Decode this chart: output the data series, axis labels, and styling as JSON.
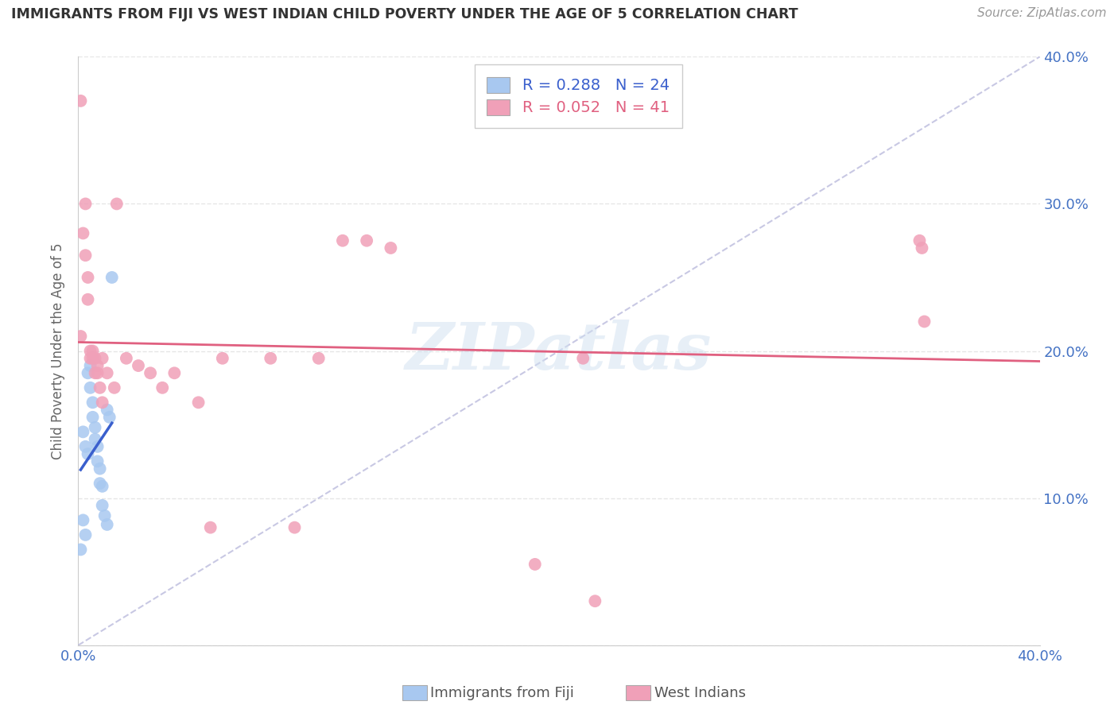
{
  "title": "IMMIGRANTS FROM FIJI VS WEST INDIAN CHILD POVERTY UNDER THE AGE OF 5 CORRELATION CHART",
  "source": "Source: ZipAtlas.com",
  "ylabel": "Child Poverty Under the Age of 5",
  "xlim": [
    0.0,
    0.4
  ],
  "ylim": [
    0.0,
    0.4
  ],
  "xticks": [
    0.0,
    0.05,
    0.1,
    0.15,
    0.2,
    0.25,
    0.3,
    0.35,
    0.4
  ],
  "yticks": [
    0.0,
    0.1,
    0.2,
    0.3,
    0.4
  ],
  "grid_color": "#e0e0e0",
  "background_color": "#ffffff",
  "fiji_color": "#a8c8f0",
  "west_indian_color": "#f0a0b8",
  "fiji_line_color": "#3a5fcd",
  "west_indian_line_color": "#e06080",
  "diagonal_color": "#bbbbdd",
  "legend_fiji_R": "0.288",
  "legend_fiji_N": 24,
  "legend_west_R": "0.052",
  "legend_west_N": 41,
  "fiji_x": [
    0.001,
    0.002,
    0.002,
    0.003,
    0.003,
    0.004,
    0.004,
    0.005,
    0.005,
    0.006,
    0.006,
    0.007,
    0.007,
    0.008,
    0.008,
    0.009,
    0.009,
    0.01,
    0.01,
    0.011,
    0.012,
    0.012,
    0.013,
    0.014
  ],
  "fiji_y": [
    0.065,
    0.085,
    0.145,
    0.075,
    0.135,
    0.13,
    0.185,
    0.19,
    0.175,
    0.165,
    0.155,
    0.148,
    0.14,
    0.135,
    0.125,
    0.12,
    0.11,
    0.108,
    0.095,
    0.088,
    0.082,
    0.16,
    0.155,
    0.25
  ],
  "west_x": [
    0.001,
    0.001,
    0.002,
    0.003,
    0.003,
    0.004,
    0.004,
    0.005,
    0.005,
    0.006,
    0.006,
    0.007,
    0.007,
    0.008,
    0.008,
    0.009,
    0.01,
    0.01,
    0.012,
    0.015,
    0.016,
    0.02,
    0.025,
    0.03,
    0.035,
    0.04,
    0.05,
    0.055,
    0.06,
    0.08,
    0.09,
    0.1,
    0.11,
    0.12,
    0.13,
    0.19,
    0.21,
    0.215,
    0.35,
    0.351,
    0.352
  ],
  "west_y": [
    0.37,
    0.21,
    0.28,
    0.265,
    0.3,
    0.25,
    0.235,
    0.195,
    0.2,
    0.2,
    0.195,
    0.185,
    0.195,
    0.19,
    0.185,
    0.175,
    0.165,
    0.195,
    0.185,
    0.175,
    0.3,
    0.195,
    0.19,
    0.185,
    0.175,
    0.185,
    0.165,
    0.08,
    0.195,
    0.195,
    0.08,
    0.195,
    0.275,
    0.275,
    0.27,
    0.055,
    0.195,
    0.03,
    0.275,
    0.27,
    0.22
  ],
  "watermark": "ZIPatlas"
}
